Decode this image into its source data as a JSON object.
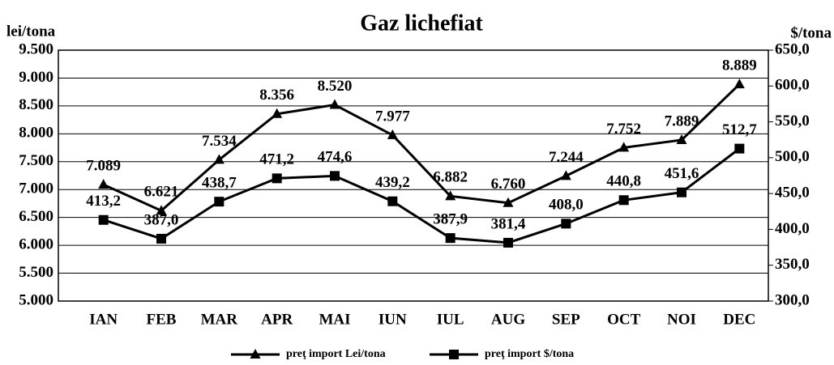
{
  "chart_data": {
    "type": "line",
    "title": "Gaz lichefiat",
    "ylabel": "lei/tona",
    "y2label": "$/tona",
    "categories": [
      "IAN",
      "FEB",
      "MAR",
      "APR",
      "MAI",
      "IUN",
      "IUL",
      "AUG",
      "SEP",
      "OCT",
      "NOI",
      "DEC"
    ],
    "series": [
      {
        "name": "preţ import Lei/tona",
        "color": "#000000",
        "marker": "triangle",
        "values": [
          7089,
          6621,
          7534,
          8356,
          8520,
          7977,
          6882,
          6760,
          7244,
          7752,
          7889,
          8889
        ],
        "value_labels": [
          "7.089",
          "6.621",
          "7.534",
          "8.356",
          "8.520",
          "7.977",
          "6.882",
          "6.760",
          "7.244",
          "7.752",
          "7.889",
          "8.889"
        ]
      },
      {
        "name": "preţ import $/tona",
        "color": "#000000",
        "marker": "square",
        "axis": "y2",
        "values": [
          413.2,
          387.0,
          438.7,
          471.2,
          474.6,
          439.2,
          387.9,
          381.4,
          408.0,
          440.8,
          451.6,
          512.7
        ],
        "value_labels": [
          "413,2",
          "387,0",
          "438,7",
          "471,2",
          "474,6",
          "439,2",
          "387,9",
          "381,4",
          "408,0",
          "440,8",
          "451,6",
          "512,7"
        ]
      }
    ],
    "ylim": [
      5000,
      9500
    ],
    "yticks": [
      {
        "value": 5000,
        "label": "5.000"
      },
      {
        "value": 5500,
        "label": "5.500"
      },
      {
        "value": 6000,
        "label": "6.000"
      },
      {
        "value": 6500,
        "label": "6.500"
      },
      {
        "value": 7000,
        "label": "7.000"
      },
      {
        "value": 7500,
        "label": "7.500"
      },
      {
        "value": 8000,
        "label": "8.000"
      },
      {
        "value": 8500,
        "label": "8.500"
      },
      {
        "value": 9000,
        "label": "9.000"
      },
      {
        "value": 9500,
        "label": "9.500"
      }
    ],
    "y2lim": [
      300,
      650
    ],
    "y2ticks": [
      {
        "value": 300,
        "label": "300,0"
      },
      {
        "value": 350,
        "label": "350,0"
      },
      {
        "value": 400,
        "label": "400,0"
      },
      {
        "value": 450,
        "label": "450,0"
      },
      {
        "value": 500,
        "label": "500,0"
      },
      {
        "value": 550,
        "label": "550,0"
      },
      {
        "value": 600,
        "label": "600,0"
      },
      {
        "value": 650,
        "label": "650,0"
      }
    ],
    "grid": true,
    "legend": "bottom"
  }
}
